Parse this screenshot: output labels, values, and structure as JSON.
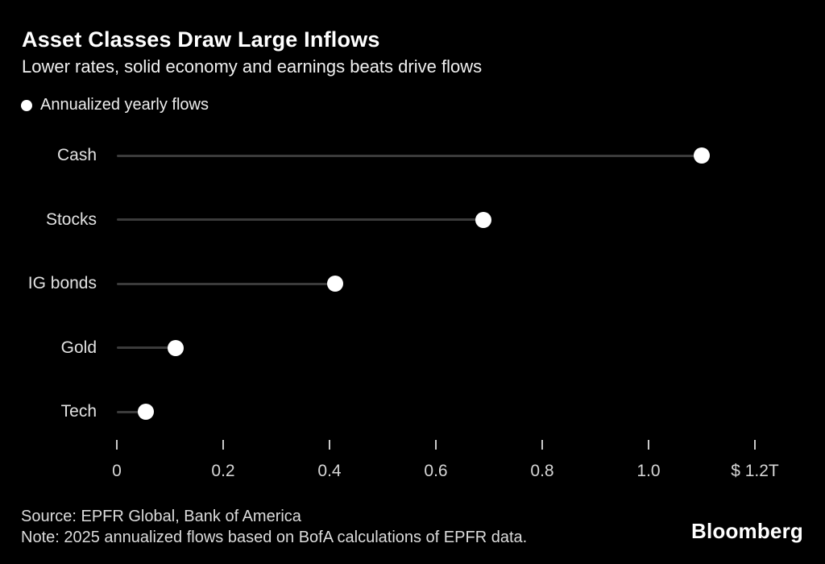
{
  "header": {
    "title": "Asset Classes Draw Large Inflows",
    "subtitle": "Lower rates, solid economy and earnings beats drive flows"
  },
  "legend": {
    "marker": "dot",
    "label": "Annualized yearly flows"
  },
  "chart_data": {
    "type": "scatter",
    "variant": "horizontal-lollipop-dot-plot",
    "title": "Asset Classes Draw Large Inflows",
    "subtitle": "Lower rates, solid economy and earnings beats drive flows",
    "series_name": "Annualized yearly flows",
    "categories": [
      "Cash",
      "Stocks",
      "IG bonds",
      "Gold",
      "Tech"
    ],
    "values": [
      1.1,
      0.69,
      0.41,
      0.11,
      0.055
    ],
    "unit": "USD trillions",
    "xlabel": "",
    "ylabel": "",
    "xlim": [
      0,
      1.2
    ],
    "x_ticks": [
      0,
      0.2,
      0.4,
      0.6,
      0.8,
      1.0,
      1.2
    ],
    "x_tick_labels": [
      "0",
      "0.2",
      "0.4",
      "0.6",
      "0.8",
      "1.0",
      "$ 1.2T"
    ],
    "grid": false,
    "legend_position": "top-left",
    "colors": {
      "background": "#000000",
      "stem_line": "#3b3b3b",
      "dot": "#ffffff",
      "tick": "#c9c9c9",
      "label_text": "#e2e2e2"
    }
  },
  "footer": {
    "source": "Source: EPFR Global, Bank of America",
    "note": "Note: 2025 annualized flows based on BofA calculations of EPFR data.",
    "brand": "Bloomberg"
  }
}
